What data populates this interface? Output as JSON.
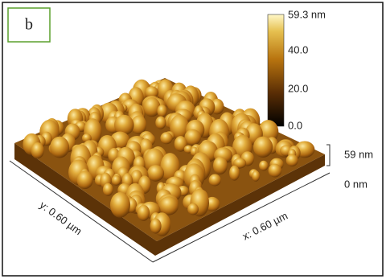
{
  "panel_label": "b",
  "colorbar": {
    "labels": [
      "59.3 nm",
      "40.0",
      "20.0",
      "0.0"
    ]
  },
  "z_axis": {
    "top": "59 nm",
    "bottom": "0 nm"
  },
  "axes": {
    "y": "y: 0.60 µm",
    "x": "x: 0.60 µm"
  }
}
